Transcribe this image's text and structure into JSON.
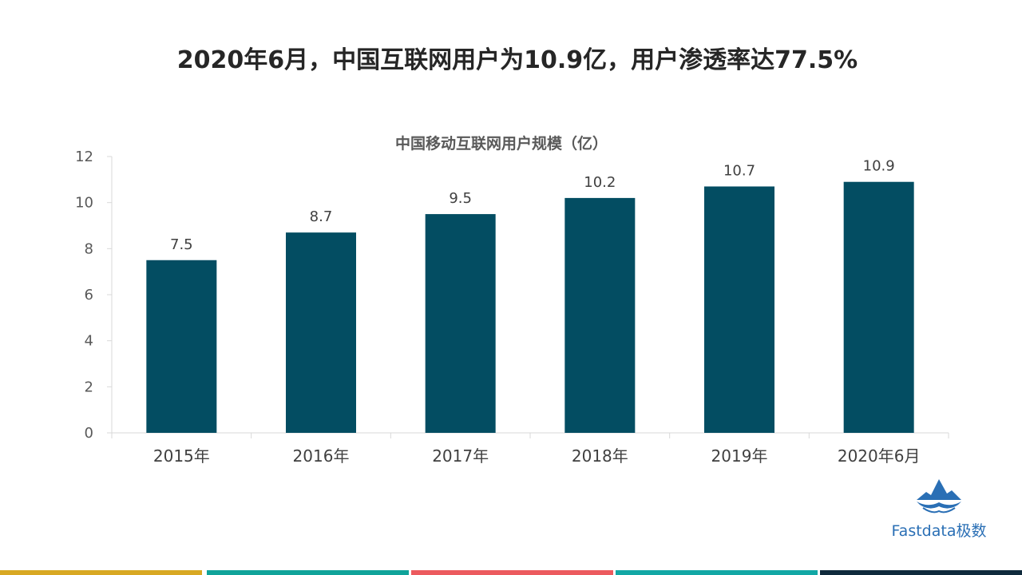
{
  "header": {
    "title": "2020年6月，中国互联网用户为10.9亿，用户渗透率达77.5%"
  },
  "chart_data": {
    "type": "bar",
    "title": "中国移动互联网用户规模（亿）",
    "categories": [
      "2015年",
      "2016年",
      "2017年",
      "2018年",
      "2019年",
      "2020年6月"
    ],
    "values": [
      7.5,
      8.7,
      9.5,
      10.2,
      10.7,
      10.9
    ],
    "data_labels": [
      "7.5",
      "8.7",
      "9.5",
      "10.2",
      "10.7",
      "10.9"
    ],
    "ylim": [
      0,
      12
    ],
    "yticks": [
      0,
      2,
      4,
      6,
      8,
      10,
      12
    ],
    "xlabel": "",
    "ylabel": "",
    "grid": false,
    "bar_color": "#034d62"
  },
  "logo": {
    "text": "Fastdata极数",
    "color": "#2a6fb5"
  },
  "footer_colors": [
    "#d8a823",
    "#10a39a",
    "#ec5a5e",
    "#12a7a5",
    "#0f2a3c"
  ]
}
